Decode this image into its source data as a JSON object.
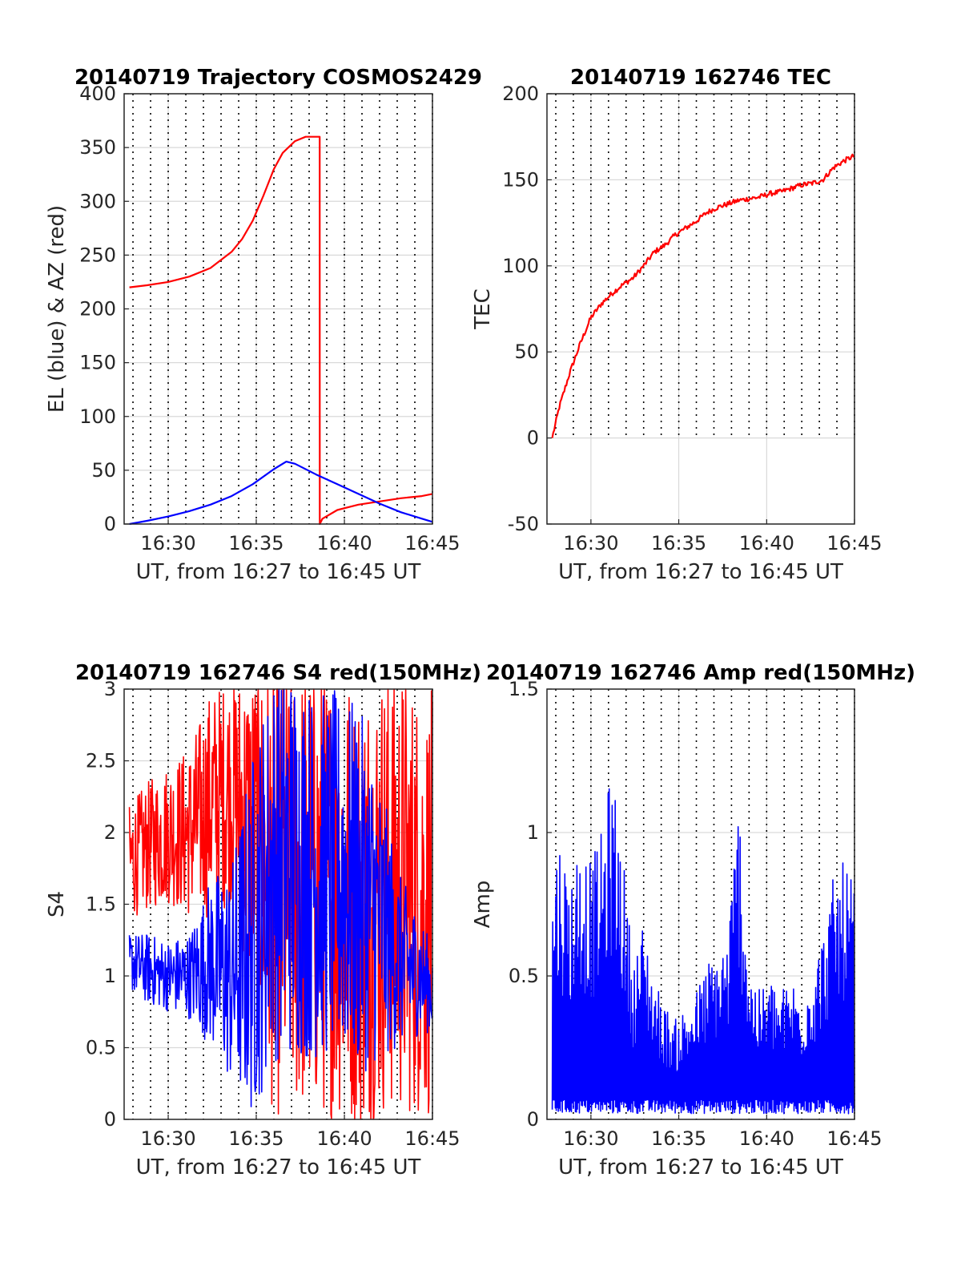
{
  "page": {
    "background": "#ffffff"
  },
  "colors": {
    "red": "#ff0000",
    "blue": "#0000ff",
    "grid": "#d9d9d9",
    "axis": "#262626"
  },
  "chart_data": [
    {
      "id": "trajectory",
      "type": "line",
      "title": "20140719 Trajectory COSMOS2429",
      "xlabel": "UT, from 16:27 to 16:45 UT",
      "ylabel": "EL (blue) & AZ (red)",
      "xlim": [
        16.4583,
        16.75
      ],
      "ylim": [
        0,
        400
      ],
      "xticks": [
        16.5,
        16.5833,
        16.6667,
        16.75
      ],
      "xtick_labels": [
        "16:30",
        "16:35",
        "16:40",
        "16:45"
      ],
      "yticks": [
        0,
        50,
        100,
        150,
        200,
        250,
        300,
        350,
        400
      ],
      "ytick_labels": [
        "0",
        "50",
        "100",
        "150",
        "200",
        "250",
        "300",
        "350",
        "400"
      ],
      "grid": true,
      "minute_dotted_lines": true,
      "series": [
        {
          "color": "#ff0000",
          "x": [
            16.4633,
            16.48,
            16.5,
            16.52,
            16.54,
            16.56,
            16.57,
            16.58,
            16.59,
            16.6,
            16.6083,
            16.62,
            16.63,
            16.6433,
            16.6434,
            16.646,
            16.66,
            16.68,
            16.7,
            16.72,
            16.74,
            16.75
          ],
          "y": [
            220,
            222,
            225,
            230,
            238,
            253,
            265,
            282,
            305,
            330,
            345,
            356,
            360,
            360,
            0,
            5,
            13,
            18,
            21,
            24,
            26,
            28
          ]
        },
        {
          "color": "#0000ff",
          "x": [
            16.4633,
            16.48,
            16.5,
            16.52,
            16.54,
            16.56,
            16.58,
            16.6,
            16.6117,
            16.62,
            16.64,
            16.66,
            16.68,
            16.7,
            16.72,
            16.74,
            16.75
          ],
          "y": [
            0,
            3,
            7,
            12,
            18,
            26,
            37,
            51,
            58,
            56,
            46,
            37,
            28,
            19,
            11,
            5,
            2
          ]
        }
      ]
    },
    {
      "id": "tec",
      "type": "line",
      "title": "20140719 162746 TEC",
      "xlabel": "UT, from 16:27 to 16:45 UT",
      "ylabel": "TEC",
      "xlim": [
        16.4583,
        16.75
      ],
      "ylim": [
        -50,
        200
      ],
      "xticks": [
        16.5,
        16.5833,
        16.6667,
        16.75
      ],
      "xtick_labels": [
        "16:30",
        "16:35",
        "16:40",
        "16:45"
      ],
      "yticks": [
        -50,
        0,
        50,
        100,
        150,
        200
      ],
      "ytick_labels": [
        "-50",
        "0",
        "50",
        "100",
        "150",
        "200"
      ],
      "grid": true,
      "minute_dotted_lines": true,
      "series": [
        {
          "color": "#ff0000",
          "x": [
            16.4633,
            16.47,
            16.48,
            16.49,
            16.5,
            16.51,
            16.52,
            16.53,
            16.54,
            16.55,
            16.56,
            16.57,
            16.58,
            16.59,
            16.6,
            16.61,
            16.62,
            16.63,
            16.64,
            16.65,
            16.66,
            16.67,
            16.68,
            16.69,
            16.7,
            16.71,
            16.72,
            16.73,
            16.74,
            16.75
          ],
          "y": [
            0,
            18,
            38,
            55,
            70,
            78,
            84,
            89,
            93,
            100,
            108,
            112,
            118,
            122,
            126,
            131,
            134,
            136,
            138,
            139,
            140,
            142,
            143,
            145,
            147,
            148,
            150,
            157,
            161,
            164
          ]
        }
      ]
    },
    {
      "id": "s4",
      "type": "line",
      "title": "20140719 162746 S4 red(150MHz)",
      "xlabel": "UT, from 16:27 to 16:45 UT",
      "ylabel": "S4",
      "xlim": [
        16.4583,
        16.75
      ],
      "ylim": [
        0,
        3
      ],
      "xticks": [
        16.5,
        16.5833,
        16.6667,
        16.75
      ],
      "xtick_labels": [
        "16:30",
        "16:35",
        "16:40",
        "16:45"
      ],
      "yticks": [
        0,
        0.5,
        1,
        1.5,
        2,
        2.5,
        3
      ],
      "ytick_labels": [
        "0",
        "0.5",
        "1",
        "1.5",
        "2",
        "2.5",
        "3"
      ],
      "grid": true,
      "minute_dotted_lines": true,
      "noisy": true,
      "series": [
        {
          "color": "#ff0000",
          "x": [
            16.4633,
            16.48,
            16.5,
            16.52,
            16.54,
            16.56,
            16.58,
            16.6,
            16.62,
            16.64,
            16.66,
            16.68,
            16.7,
            16.72,
            16.74,
            16.75
          ],
          "y": [
            1.8,
            1.9,
            2.0,
            2.0,
            2.2,
            2.3,
            2.0,
            1.6,
            1.6,
            1.6,
            1.6,
            1.5,
            1.6,
            1.6,
            1.5,
            1.5
          ],
          "spread": [
            0.4,
            0.45,
            0.5,
            0.6,
            0.8,
            0.8,
            1.2,
            1.6,
            1.6,
            1.6,
            1.6,
            1.6,
            1.6,
            1.6,
            1.5,
            1.5
          ]
        },
        {
          "color": "#0000ff",
          "x": [
            16.4633,
            16.48,
            16.5,
            16.52,
            16.54,
            16.56,
            16.58,
            16.6,
            16.62,
            16.64,
            16.66,
            16.68,
            16.7,
            16.72,
            16.74,
            16.75
          ],
          "y": [
            1.1,
            1.05,
            1.0,
            1.0,
            1.1,
            1.0,
            1.3,
            1.8,
            1.8,
            1.7,
            1.7,
            1.6,
            1.4,
            1.1,
            1.0,
            0.9
          ],
          "spread": [
            0.2,
            0.25,
            0.25,
            0.3,
            0.6,
            0.8,
            1.3,
            1.4,
            1.4,
            1.3,
            1.3,
            1.3,
            1.0,
            0.6,
            0.4,
            0.3
          ]
        }
      ]
    },
    {
      "id": "amp",
      "type": "line",
      "title": "20140719 162746 Amp red(150MHz)",
      "xlabel": "UT, from 16:27 to 16:45 UT",
      "ylabel": "Amp",
      "xlim": [
        16.4583,
        16.75
      ],
      "ylim": [
        0,
        1.5
      ],
      "xticks": [
        16.5,
        16.5833,
        16.6667,
        16.75
      ],
      "xtick_labels": [
        "16:30",
        "16:35",
        "16:40",
        "16:45"
      ],
      "yticks": [
        0,
        0.5,
        1,
        1.5
      ],
      "ytick_labels": [
        "0",
        "0.5",
        "1",
        "1.5"
      ],
      "grid": true,
      "minute_dotted_lines": true,
      "noisy": true,
      "series": [
        {
          "color": "#0000ff",
          "x": [
            16.4633,
            16.47,
            16.48,
            16.49,
            16.5,
            16.51,
            16.52,
            16.53,
            16.54,
            16.55,
            16.56,
            16.57,
            16.58,
            16.59,
            16.6,
            16.61,
            16.62,
            16.63,
            16.64,
            16.65,
            16.66,
            16.67,
            16.68,
            16.69,
            16.7,
            16.71,
            16.72,
            16.73,
            16.74,
            16.75
          ],
          "y": [
            0.9,
            1.0,
            0.85,
            1.0,
            0.9,
            1.0,
            1.25,
            0.95,
            0.55,
            0.7,
            0.5,
            0.4,
            0.35,
            0.4,
            0.45,
            0.55,
            0.6,
            0.65,
            1.15,
            0.55,
            0.45,
            0.5,
            0.45,
            0.5,
            0.45,
            0.55,
            0.65,
            0.85,
            0.9,
            0.85
          ]
        }
      ]
    }
  ]
}
